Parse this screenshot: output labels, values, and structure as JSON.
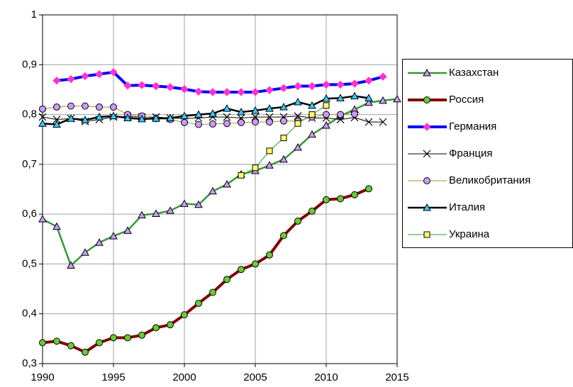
{
  "chart_data": {
    "type": "line",
    "x": [
      1990,
      1991,
      1992,
      1993,
      1994,
      1995,
      1996,
      1997,
      1998,
      1999,
      2000,
      2001,
      2002,
      2003,
      2004,
      2005,
      2006,
      2007,
      2008,
      2009,
      2010,
      2011,
      2012,
      2013,
      2014,
      2015
    ],
    "xlim": [
      1990,
      2015
    ],
    "xticks": [
      1990,
      1995,
      2000,
      2005,
      2010,
      2015
    ],
    "ylim": [
      0.3,
      1
    ],
    "yticks": [
      {
        "value": 0.3,
        "label": "0,3"
      },
      {
        "value": 0.4,
        "label": "0,4"
      },
      {
        "value": 0.5,
        "label": "0,5"
      },
      {
        "value": 0.6,
        "label": "0,6"
      },
      {
        "value": 0.7,
        "label": "0,7"
      },
      {
        "value": 0.8,
        "label": "0,8"
      },
      {
        "value": 0.9,
        "label": "0,9"
      },
      {
        "value": 1,
        "label": "1"
      }
    ],
    "grid": true,
    "legend": "right",
    "series": [
      {
        "name": "Казахстан",
        "color": "#339933",
        "marker": "triangle",
        "marker_color": "#cc99ff",
        "width": 2.5,
        "values": [
          0.59,
          0.575,
          0.497,
          0.523,
          0.543,
          0.556,
          0.567,
          0.598,
          0.601,
          0.607,
          0.621,
          0.619,
          0.646,
          0.66,
          0.68,
          0.687,
          0.698,
          0.71,
          0.734,
          0.76,
          0.778,
          0.797,
          0.81,
          0.824,
          0.828,
          0.831
        ]
      },
      {
        "name": "Россия",
        "color": "#800000",
        "marker": "circle",
        "marker_color": "#66cc33",
        "width": 4,
        "values": [
          0.342,
          0.345,
          0.336,
          0.323,
          0.342,
          0.352,
          0.352,
          0.357,
          0.372,
          0.378,
          0.398,
          0.421,
          0.443,
          0.469,
          0.489,
          0.5,
          0.518,
          0.557,
          0.586,
          0.606,
          0.629,
          0.631,
          0.639,
          0.651,
          null,
          null
        ]
      },
      {
        "name": "Германия",
        "color": "#0000ff",
        "marker": "diamond",
        "marker_color": "#ff33cc",
        "width": 4,
        "values": [
          null,
          0.868,
          0.871,
          0.877,
          0.881,
          0.885,
          0.858,
          0.859,
          0.857,
          0.855,
          0.851,
          0.846,
          0.845,
          0.845,
          0.845,
          0.845,
          0.849,
          0.853,
          0.857,
          0.857,
          0.86,
          0.86,
          0.862,
          0.868,
          0.876,
          null
        ]
      },
      {
        "name": "Франция",
        "color": "#000000",
        "marker": "x",
        "marker_color": "#000000",
        "width": 1,
        "values": [
          0.795,
          0.79,
          0.792,
          0.786,
          0.79,
          0.795,
          0.796,
          0.795,
          0.795,
          0.793,
          0.792,
          0.793,
          0.795,
          0.795,
          0.793,
          0.795,
          0.795,
          0.795,
          0.797,
          0.793,
          0.793,
          0.79,
          0.794,
          0.785,
          0.785,
          null
        ]
      },
      {
        "name": "Великобритания",
        "color": "#999933",
        "marker": "circle",
        "marker_color": "#cc99ff",
        "width": 1,
        "values": [
          0.811,
          0.815,
          0.817,
          0.817,
          0.815,
          0.815,
          0.8,
          0.797,
          0.792,
          0.79,
          0.784,
          0.78,
          0.781,
          0.782,
          0.784,
          0.785,
          0.785,
          0.787,
          0.787,
          0.795,
          0.8,
          0.8,
          0.801,
          null,
          null,
          null
        ]
      },
      {
        "name": "Италия",
        "color": "#000000",
        "marker": "triangle",
        "marker_color": "#33ccff",
        "width": 2.5,
        "values": [
          0.782,
          0.78,
          0.792,
          0.789,
          0.795,
          0.797,
          0.793,
          0.791,
          0.792,
          0.793,
          0.797,
          0.8,
          0.802,
          0.812,
          0.805,
          0.808,
          0.812,
          0.815,
          0.825,
          0.818,
          0.832,
          0.833,
          0.837,
          0.833,
          null,
          null
        ]
      },
      {
        "name": "Украина",
        "color": "#339933",
        "marker": "square",
        "marker_color": "#ffff66",
        "width": 1,
        "values": [
          null,
          null,
          null,
          null,
          null,
          null,
          null,
          null,
          null,
          null,
          null,
          null,
          null,
          null,
          0.678,
          0.693,
          0.727,
          0.753,
          0.782,
          0.8,
          0.818,
          null,
          null,
          null,
          null,
          null
        ]
      }
    ]
  }
}
